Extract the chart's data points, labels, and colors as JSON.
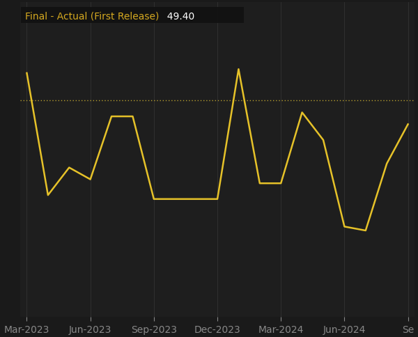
{
  "title_label": "Final - Actual (First Release)",
  "title_value": "49.40",
  "background_color": "#1a1a1a",
  "plot_bg_color": "#1e1e1e",
  "grid_color": "#333333",
  "line_color": "#e6c229",
  "reference_line_value": 50.0,
  "reference_line_color": "#b8a030",
  "dates": [
    0,
    1,
    2,
    3,
    4,
    5,
    6,
    7,
    8,
    9,
    10,
    11,
    12,
    13,
    14,
    15,
    16,
    17,
    18
  ],
  "values": [
    50.7,
    47.6,
    48.3,
    48.0,
    49.6,
    49.6,
    47.5,
    47.5,
    47.5,
    47.5,
    50.8,
    47.9,
    47.9,
    49.7,
    49.0,
    46.8,
    46.7,
    48.4,
    49.4
  ],
  "ylim_min": 44.5,
  "ylim_max": 52.5,
  "title_box_color": "#111111",
  "title_text_color": "#d4a820",
  "title_value_color": "#ffffff",
  "x_tick_color": "#888888",
  "axis_label_size": 10,
  "xtick_positions": [
    0,
    3,
    6,
    9,
    12,
    15,
    18
  ],
  "xtick_labels": [
    "Mar-2023",
    "Jun-2023",
    "Sep-2023",
    "Dec-2023",
    "Mar-2024",
    "Jun-2024",
    "Se"
  ]
}
